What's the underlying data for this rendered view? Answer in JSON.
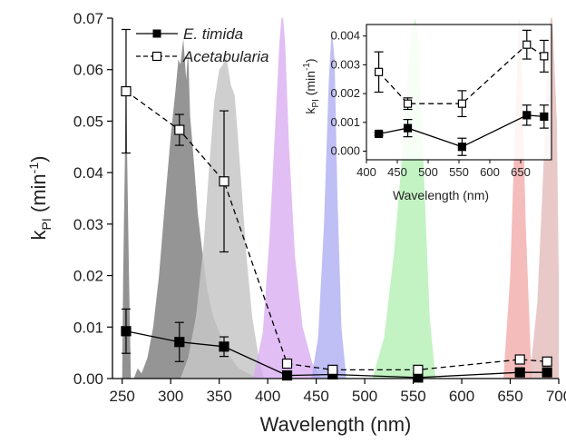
{
  "chart_data": [
    {
      "type": "line",
      "xlabel": "Wavelength (nm)",
      "ylabel_main": "k",
      "ylabel_sub": "PI",
      "ylabel_unit_pre": " (min",
      "ylabel_unit_sup": "-1",
      "ylabel_unit_post": ")",
      "xlim": [
        240,
        700
      ],
      "ylim": [
        0,
        0.07
      ],
      "x_ticks": [
        250,
        300,
        350,
        400,
        450,
        500,
        550,
        600,
        650,
        700
      ],
      "y_ticks": [
        0.0,
        0.01,
        0.02,
        0.03,
        0.04,
        0.05,
        0.06,
        0.07
      ],
      "y_tick_labels": [
        "0.00",
        "0.01",
        "0.02",
        "0.03",
        "0.04",
        "0.05",
        "0.06",
        "0.07"
      ],
      "legend_position": "top-left",
      "series": [
        {
          "name": "E. timida",
          "marker": "filled-square",
          "line": "solid",
          "color": "#000000",
          "x": [
            254,
            309,
            355,
            420,
            467,
            555,
            660,
            688
          ],
          "y": [
            0.0092,
            0.0071,
            0.0062,
            0.0006,
            0.0008,
            0.0002,
            0.0012,
            0.0012
          ],
          "err": [
            0.0043,
            0.0038,
            0.0019,
            0.0003,
            0.0003,
            0.0003,
            0.0003,
            0.0003
          ]
        },
        {
          "name": "Acetabularia",
          "marker": "open-square",
          "line": "dashed",
          "color": "#000000",
          "x": [
            254,
            309,
            355,
            420,
            467,
            555,
            660,
            688
          ],
          "y": [
            0.0558,
            0.0483,
            0.0383,
            0.0029,
            0.0017,
            0.0017,
            0.0037,
            0.0033
          ],
          "err": [
            0.012,
            0.003,
            0.0137,
            0.0005,
            0.0003,
            0.0004,
            0.0005,
            0.0005
          ]
        }
      ],
      "spectra": [
        {
          "color": "#8c8c8c",
          "opacity": 0.95,
          "points": [
            [
              250,
              0
            ],
            [
              251,
              0.02
            ],
            [
              253,
              0.045
            ],
            [
              254,
              0.063
            ],
            [
              255,
              0.045
            ],
            [
              257,
              0.02
            ],
            [
              259,
              0
            ]
          ]
        },
        {
          "color": "#8f8f8f",
          "opacity": 0.95,
          "points": [
            [
              262,
              0
            ],
            [
              266,
              0.002
            ],
            [
              270,
              0.001
            ],
            [
              276,
              0.004
            ],
            [
              282,
              0.01
            ],
            [
              288,
              0.02
            ],
            [
              294,
              0.034
            ],
            [
              300,
              0.047
            ],
            [
              305,
              0.056
            ],
            [
              308,
              0.062
            ],
            [
              310,
              0.061
            ],
            [
              313,
              0.066
            ],
            [
              316,
              0.058
            ],
            [
              318,
              0.064
            ],
            [
              320,
              0.051
            ],
            [
              324,
              0.042
            ],
            [
              328,
              0.032
            ],
            [
              333,
              0.024
            ],
            [
              338,
              0.017
            ],
            [
              344,
              0.012
            ],
            [
              350,
              0.009
            ],
            [
              356,
              0.006
            ],
            [
              362,
              0.004
            ],
            [
              370,
              0.002
            ],
            [
              380,
              0.001
            ],
            [
              390,
              0
            ]
          ]
        },
        {
          "color": "#c7c7c7",
          "opacity": 0.85,
          "points": [
            [
              310,
              0
            ],
            [
              318,
              0.004
            ],
            [
              326,
              0.012
            ],
            [
              334,
              0.026
            ],
            [
              340,
              0.042
            ],
            [
              345,
              0.054
            ],
            [
              350,
              0.06
            ],
            [
              354,
              0.061
            ],
            [
              357,
              0.063
            ],
            [
              362,
              0.057
            ],
            [
              366,
              0.055
            ],
            [
              372,
              0.04
            ],
            [
              378,
              0.024
            ],
            [
              384,
              0.012
            ],
            [
              390,
              0.005
            ],
            [
              396,
              0
            ]
          ]
        },
        {
          "color": "#d7a8f0",
          "opacity": 0.75,
          "points": [
            [
              385,
              0
            ],
            [
              395,
              0.009
            ],
            [
              402,
              0.028
            ],
            [
              408,
              0.05
            ],
            [
              412,
              0.065
            ],
            [
              415,
              0.072
            ],
            [
              418,
              0.065
            ],
            [
              422,
              0.045
            ],
            [
              428,
              0.024
            ],
            [
              436,
              0.01
            ],
            [
              446,
              0.003
            ],
            [
              455,
              0
            ]
          ]
        },
        {
          "color": "#a9a9f2",
          "opacity": 0.75,
          "points": [
            [
              445,
              0
            ],
            [
              452,
              0.008
            ],
            [
              458,
              0.03
            ],
            [
              463,
              0.058
            ],
            [
              466,
              0.068
            ],
            [
              469,
              0.062
            ],
            [
              472,
              0.035
            ],
            [
              476,
              0.01
            ],
            [
              481,
              0
            ]
          ]
        },
        {
          "color": "#aaeeaa",
          "opacity": 0.7,
          "points": [
            [
              508,
              0
            ],
            [
              520,
              0.008
            ],
            [
              530,
              0.024
            ],
            [
              538,
              0.042
            ],
            [
              544,
              0.058
            ],
            [
              548,
              0.067
            ],
            [
              552,
              0.07
            ],
            [
              555,
              0.066
            ],
            [
              559,
              0.05
            ],
            [
              563,
              0.03
            ],
            [
              567,
              0.012
            ],
            [
              573,
              0
            ]
          ]
        },
        {
          "color": "#f2a5a5",
          "opacity": 0.75,
          "points": [
            [
              643,
              0
            ],
            [
              650,
              0.02
            ],
            [
              655,
              0.05
            ],
            [
              659,
              0.07
            ],
            [
              662,
              0.06
            ],
            [
              666,
              0.03
            ],
            [
              672,
              0
            ]
          ]
        },
        {
          "color": "#e2b6b6",
          "opacity": 0.75,
          "points": [
            [
              670,
              0
            ],
            [
              678,
              0.015
            ],
            [
              684,
              0.04
            ],
            [
              689,
              0.065
            ],
            [
              693,
              0.072
            ],
            [
              698,
              0.05
            ],
            [
              700,
              0.02
            ],
            [
              700,
              0
            ]
          ]
        }
      ]
    },
    {
      "type": "line",
      "panel": "inset",
      "xlabel": "Wavelength (nm)",
      "ylabel_main": "k",
      "ylabel_sub": "PI",
      "ylabel_unit_pre": " (min",
      "ylabel_unit_sup": "-1",
      "ylabel_unit_post": ")",
      "xlim": [
        400,
        700
      ],
      "ylim": [
        -0.0003,
        0.0044
      ],
      "x_ticks": [
        400,
        450,
        500,
        550,
        600,
        650
      ],
      "y_ticks": [
        0.0,
        0.001,
        0.002,
        0.003,
        0.004
      ],
      "y_tick_labels": [
        "0.000",
        "0.001",
        "0.002",
        "0.003",
        "0.004"
      ],
      "series": [
        {
          "name": "E. timida",
          "marker": "filled-square",
          "line": "solid",
          "x": [
            420,
            467,
            555,
            660,
            688
          ],
          "y": [
            0.0006,
            0.0008,
            0.00015,
            0.00125,
            0.0012
          ],
          "err": [
            5e-05,
            0.0003,
            0.0003,
            0.00035,
            0.0004
          ]
        },
        {
          "name": "Acetabularia",
          "marker": "open-square",
          "line": "dashed",
          "x": [
            420,
            467,
            555,
            660,
            688
          ],
          "y": [
            0.00275,
            0.00165,
            0.00165,
            0.0037,
            0.0033
          ],
          "err": [
            0.0007,
            0.0002,
            0.00045,
            0.0005,
            0.00055
          ]
        }
      ]
    }
  ]
}
